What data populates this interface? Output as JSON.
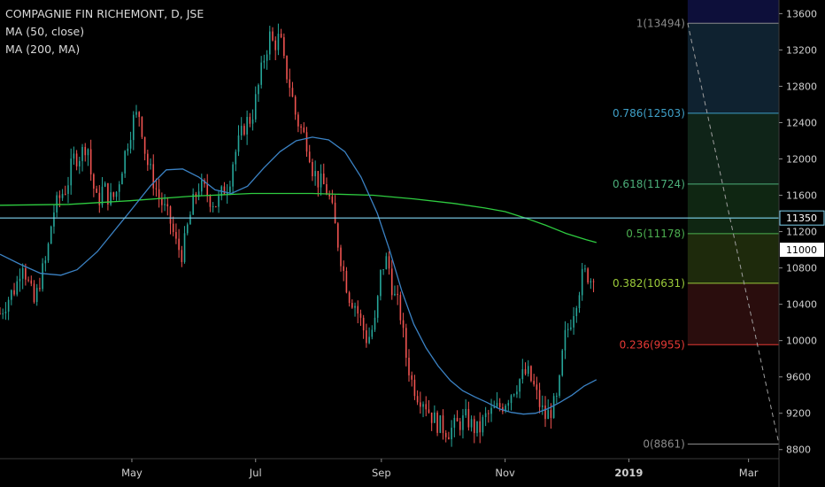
{
  "legend": {
    "title": "COMPAGNIE FIN RICHEMONT, D, JSE",
    "ma50": "MA (50, close)",
    "ma200": "MA (200, MA)"
  },
  "chart_data": {
    "type": "candlestick",
    "title": "COMPAGNIE FIN RICHEMONT, D, JSE",
    "y_ticks": [
      8800,
      9200,
      9600,
      10000,
      10400,
      10800,
      11200,
      11600,
      12000,
      12400,
      12800,
      13200,
      13600
    ],
    "ylim": [
      8700,
      13750
    ],
    "x_labels": [
      {
        "label": "May",
        "day": 31
      },
      {
        "label": "Jul",
        "day": 92
      },
      {
        "label": "Sep",
        "day": 154
      },
      {
        "label": "Nov",
        "day": 215
      },
      {
        "label": "2019",
        "day": 276
      },
      {
        "label": "Mar",
        "day": 335
      }
    ],
    "x_range_days": [
      -34,
      350
    ],
    "price_labels": [
      {
        "value": 11350,
        "text": "11350",
        "color": "#ffffff",
        "bg": "#000000"
      },
      {
        "value": 11000,
        "text": "11000",
        "color": "#000000",
        "bg": "#ffffff"
      }
    ],
    "horizontal_line": {
      "value": 11350,
      "color": "#7fd3ef"
    },
    "fibonacci": {
      "start_day": 305,
      "end_day": 350,
      "high": 13494,
      "low": 8861,
      "levels": [
        {
          "ratio": 1,
          "text": "1(13494)",
          "value": 13494,
          "color": "#8a8a8a",
          "fill": "#1f1f1f"
        },
        {
          "ratio": 0.786,
          "text": "0.786(12503)",
          "value": 12503,
          "color": "#3fa0c8",
          "fill": "#0f2230"
        },
        {
          "ratio": 0.618,
          "text": "0.618(11724)",
          "value": 11724,
          "color": "#4caf7a",
          "fill": "#0f2418"
        },
        {
          "ratio": 0.5,
          "text": "0.5(11178)",
          "value": 11178,
          "color": "#4caf50",
          "fill": "#0f2612"
        },
        {
          "ratio": 0.382,
          "text": "0.382(10631)",
          "value": 10631,
          "color": "#9ccc3a",
          "fill": "#1e2a0c"
        },
        {
          "ratio": 0.236,
          "text": "0.236(9955)",
          "value": 9955,
          "color": "#e53935",
          "fill": "#2a0d0d"
        },
        {
          "ratio": 0,
          "text": "0(8861)",
          "value": 8861,
          "color": "#8a8a8a",
          "fill": "#000000"
        }
      ],
      "top_fill": "#0d0f3a"
    },
    "candle_anchors": [
      [
        -34,
        10300
      ],
      [
        -29,
        10500
      ],
      [
        -26,
        10600
      ],
      [
        -23,
        10900
      ],
      [
        -21,
        10700
      ],
      [
        -17,
        10400
      ],
      [
        -14,
        10700
      ],
      [
        -11,
        10900
      ],
      [
        -8,
        11400
      ],
      [
        -4,
        11600
      ],
      [
        -1,
        11700
      ],
      [
        2,
        12000
      ],
      [
        6,
        12050
      ],
      [
        9,
        12200
      ],
      [
        11,
        11800
      ],
      [
        14,
        11500
      ],
      [
        17,
        11700
      ],
      [
        20,
        11550
      ],
      [
        23,
        11600
      ],
      [
        26,
        11900
      ],
      [
        29,
        12200
      ],
      [
        32,
        12450
      ],
      [
        35,
        12500
      ],
      [
        38,
        12000
      ],
      [
        41,
        11800
      ],
      [
        44,
        11600
      ],
      [
        47,
        11450
      ],
      [
        50,
        11300
      ],
      [
        53,
        11050
      ],
      [
        56,
        10950
      ],
      [
        58,
        11200
      ],
      [
        61,
        11500
      ],
      [
        64,
        11700
      ],
      [
        67,
        11650
      ],
      [
        70,
        11550
      ],
      [
        73,
        11500
      ],
      [
        76,
        11650
      ],
      [
        79,
        11750
      ],
      [
        81,
        12000
      ],
      [
        84,
        12200
      ],
      [
        87,
        12400
      ],
      [
        90,
        12450
      ],
      [
        93,
        12750
      ],
      [
        96,
        13100
      ],
      [
        99,
        13350
      ],
      [
        101,
        13250
      ],
      [
        104,
        13350
      ],
      [
        106,
        13050
      ],
      [
        109,
        12800
      ],
      [
        112,
        12450
      ],
      [
        115,
        12300
      ],
      [
        118,
        12150
      ],
      [
        120,
        11900
      ],
      [
        123,
        11750
      ],
      [
        126,
        11700
      ],
      [
        128,
        11600
      ],
      [
        130,
        11400
      ],
      [
        132,
        11150
      ],
      [
        135,
        10800
      ],
      [
        138,
        10500
      ],
      [
        141,
        10400
      ],
      [
        144,
        10200
      ],
      [
        147,
        10000
      ],
      [
        149,
        10100
      ],
      [
        151,
        10200
      ],
      [
        154,
        10800
      ],
      [
        157,
        10900
      ],
      [
        160,
        10500
      ],
      [
        163,
        10350
      ],
      [
        166,
        9850
      ],
      [
        169,
        9550
      ],
      [
        172,
        9400
      ],
      [
        175,
        9350
      ],
      [
        178,
        9200
      ],
      [
        181,
        9100
      ],
      [
        184,
        9050
      ],
      [
        187,
        9000
      ],
      [
        190,
        9050
      ],
      [
        193,
        9100
      ],
      [
        196,
        9150
      ],
      [
        199,
        9050
      ],
      [
        202,
        9000
      ],
      [
        205,
        9150
      ],
      [
        208,
        9200
      ],
      [
        211,
        9250
      ],
      [
        214,
        9300
      ],
      [
        217,
        9400
      ],
      [
        220,
        9500
      ],
      [
        223,
        9600
      ],
      [
        226,
        9650
      ],
      [
        229,
        9500
      ],
      [
        232,
        9300
      ],
      [
        235,
        9150
      ],
      [
        238,
        9250
      ],
      [
        241,
        9350
      ],
      [
        244,
        10000
      ],
      [
        247,
        10200
      ],
      [
        250,
        10450
      ],
      [
        253,
        10700
      ],
      [
        255,
        10750
      ],
      [
        258,
        10650
      ],
      [
        260,
        11000
      ]
    ],
    "ma50": [
      [
        -34,
        10950
      ],
      [
        -24,
        10840
      ],
      [
        -14,
        10740
      ],
      [
        -4,
        10720
      ],
      [
        4,
        10780
      ],
      [
        14,
        10980
      ],
      [
        22,
        11200
      ],
      [
        30,
        11420
      ],
      [
        40,
        11700
      ],
      [
        48,
        11880
      ],
      [
        56,
        11890
      ],
      [
        64,
        11800
      ],
      [
        72,
        11660
      ],
      [
        80,
        11620
      ],
      [
        88,
        11700
      ],
      [
        96,
        11900
      ],
      [
        104,
        12080
      ],
      [
        112,
        12200
      ],
      [
        120,
        12240
      ],
      [
        128,
        12210
      ],
      [
        136,
        12080
      ],
      [
        144,
        11800
      ],
      [
        152,
        11400
      ],
      [
        158,
        11000
      ],
      [
        164,
        10550
      ],
      [
        170,
        10180
      ],
      [
        176,
        9920
      ],
      [
        182,
        9720
      ],
      [
        188,
        9560
      ],
      [
        194,
        9450
      ],
      [
        200,
        9380
      ],
      [
        206,
        9320
      ],
      [
        212,
        9250
      ],
      [
        218,
        9210
      ],
      [
        224,
        9190
      ],
      [
        230,
        9200
      ],
      [
        236,
        9250
      ],
      [
        242,
        9320
      ],
      [
        248,
        9400
      ],
      [
        254,
        9500
      ],
      [
        260,
        9570
      ]
    ],
    "ma200": [
      [
        -34,
        11490
      ],
      [
        0,
        11500
      ],
      [
        30,
        11540
      ],
      [
        60,
        11590
      ],
      [
        90,
        11620
      ],
      [
        120,
        11620
      ],
      [
        150,
        11600
      ],
      [
        170,
        11560
      ],
      [
        190,
        11510
      ],
      [
        205,
        11460
      ],
      [
        215,
        11420
      ],
      [
        225,
        11350
      ],
      [
        235,
        11270
      ],
      [
        245,
        11180
      ],
      [
        255,
        11110
      ],
      [
        260,
        11080
      ]
    ]
  }
}
